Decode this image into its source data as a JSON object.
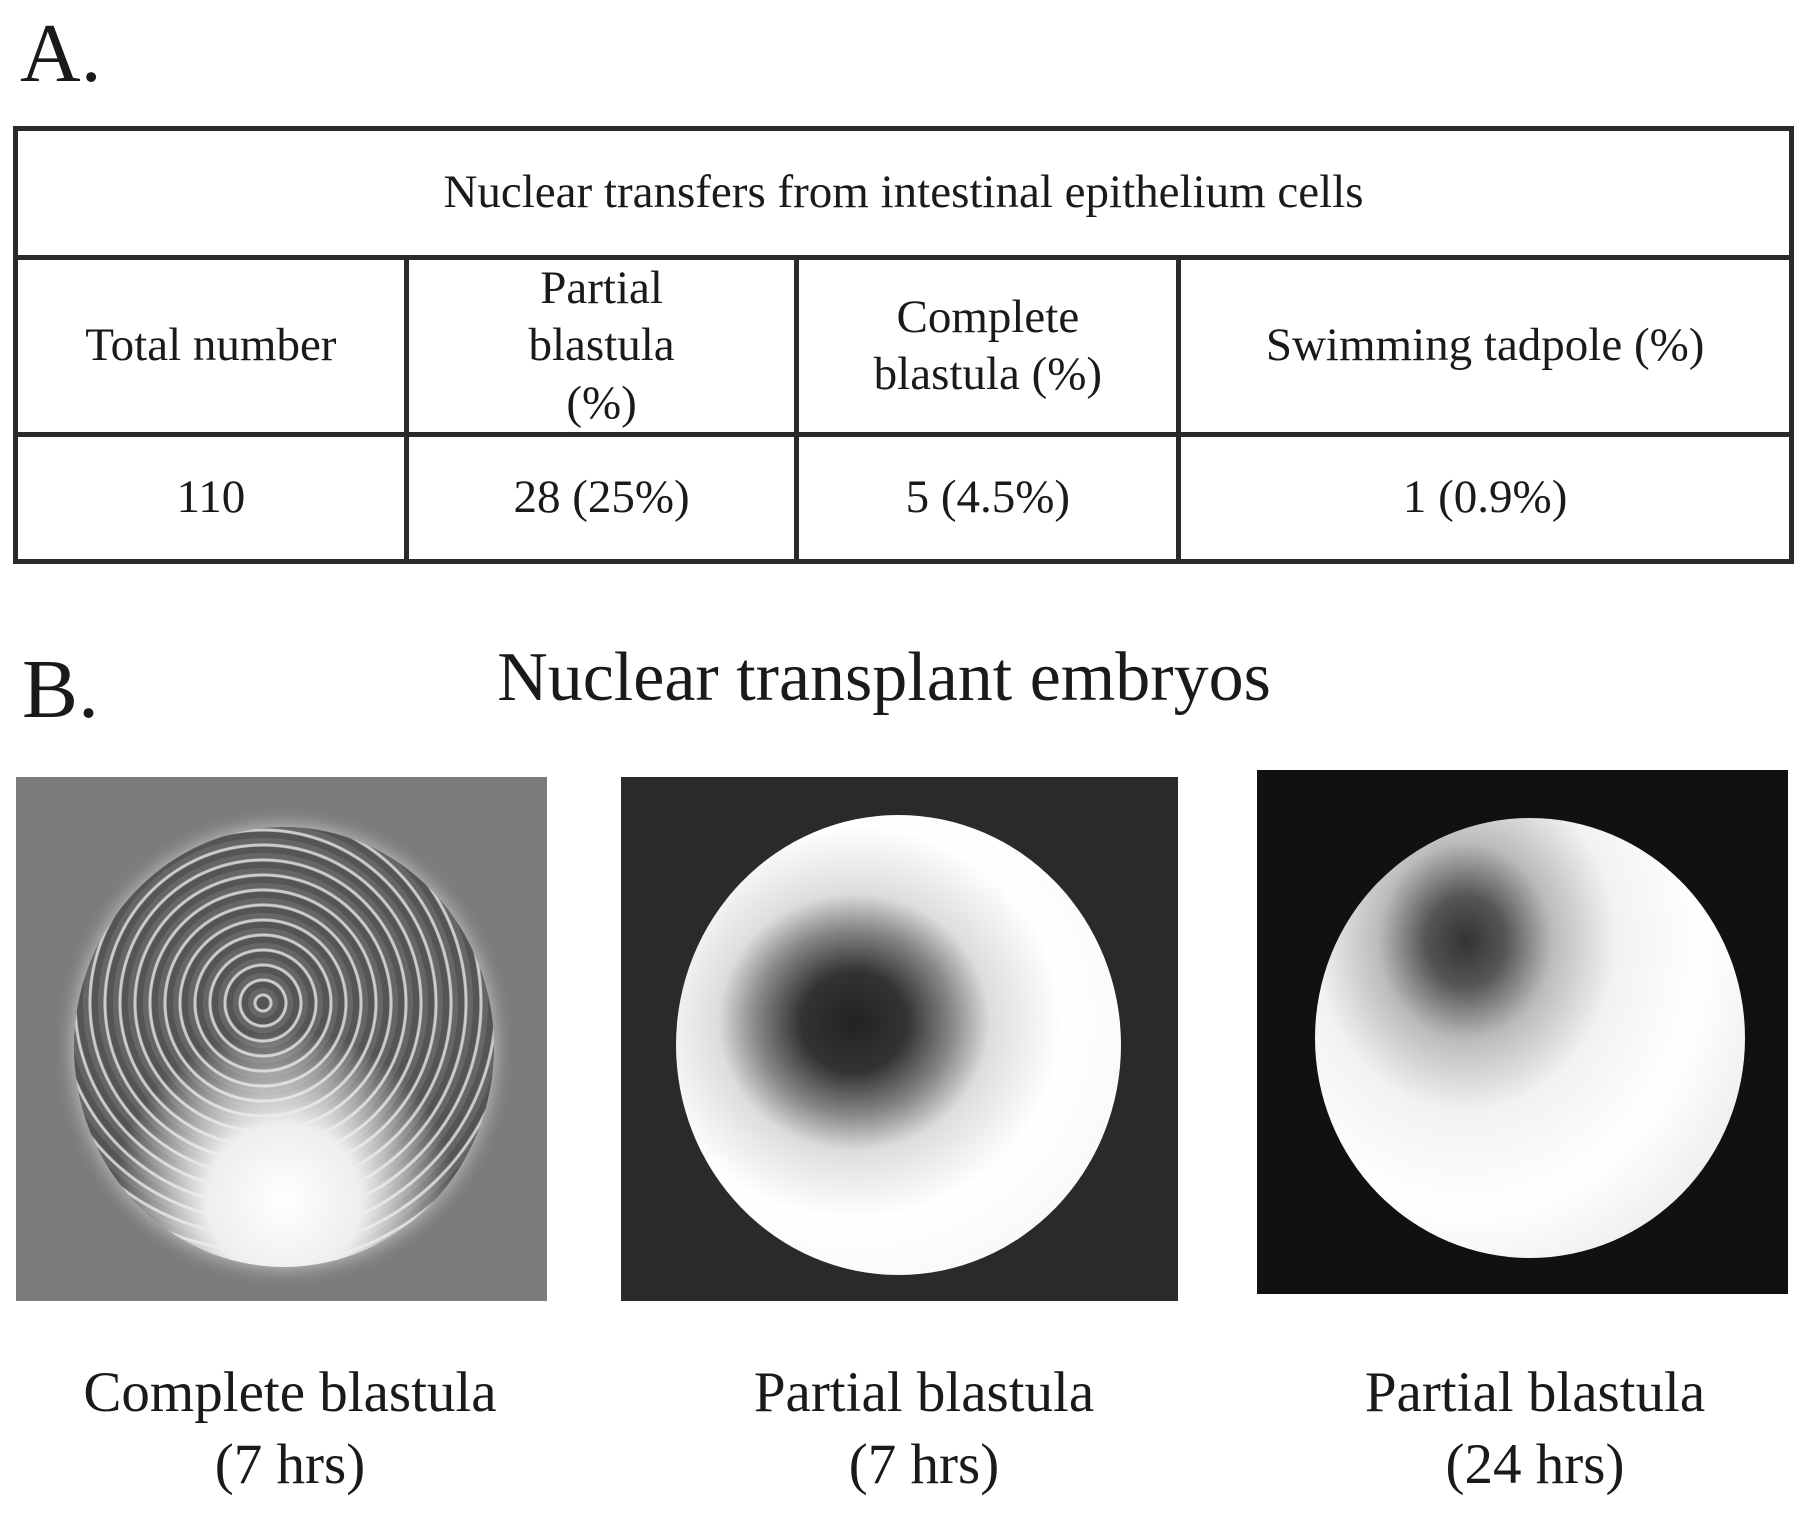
{
  "panel_a": {
    "label": "A.",
    "table": {
      "title": "Nuclear transfers from intestinal epithelium cells",
      "headers": [
        "Total number",
        "Partial blastula (%)",
        "Complete blastula (%)",
        "Swimming tadpole (%)"
      ],
      "values": [
        "110",
        "28 (25%)",
        "5 (4.5%)",
        "1 (0.9%)"
      ]
    }
  },
  "panel_b": {
    "label": "B.",
    "title": "Nuclear transplant embryos",
    "images": [
      {
        "caption_line1": "Complete blastula",
        "caption_line2": "(7 hrs)"
      },
      {
        "caption_line1": "Partial blastula",
        "caption_line2": "(7 hrs)"
      },
      {
        "caption_line1": "Partial blastula",
        "caption_line2": "(24 hrs)"
      }
    ]
  }
}
